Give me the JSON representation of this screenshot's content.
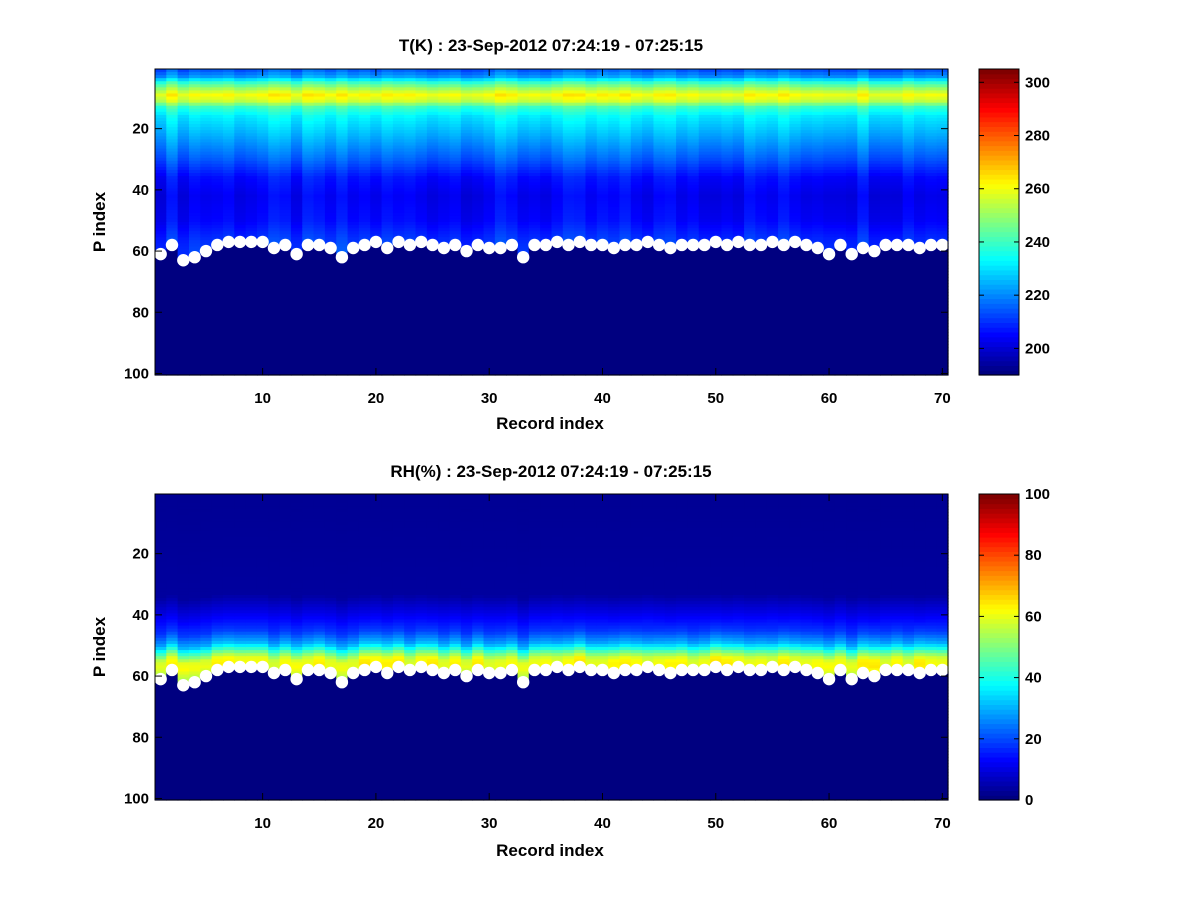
{
  "chart_data": [
    {
      "type": "heatmap",
      "title": "T(K) : 23-Sep-2012 07:24:19 - 07:25:15",
      "xlabel": "Record index",
      "ylabel": "P index",
      "xlim": [
        1,
        70
      ],
      "ylim": [
        100,
        1
      ],
      "x_ticks": [
        10,
        20,
        30,
        40,
        50,
        60,
        70
      ],
      "y_ticks": [
        20,
        40,
        60,
        80,
        100
      ],
      "colorbar": {
        "min": 190,
        "max": 305,
        "ticks": [
          200,
          220,
          240,
          260,
          280,
          300
        ],
        "colormap": "jet"
      },
      "profile_rows": [
        {
          "p": 1,
          "value": 215
        },
        {
          "p": 3,
          "value": 222
        },
        {
          "p": 5,
          "value": 240
        },
        {
          "p": 7,
          "value": 252
        },
        {
          "p": 9,
          "value": 262
        },
        {
          "p": 11,
          "value": 256
        },
        {
          "p": 13,
          "value": 240
        },
        {
          "p": 16,
          "value": 232
        },
        {
          "p": 22,
          "value": 225
        },
        {
          "p": 30,
          "value": 215
        },
        {
          "p": 36,
          "value": 206
        },
        {
          "p": 42,
          "value": 203
        },
        {
          "p": 50,
          "value": 205
        },
        {
          "p": 56,
          "value": 210
        },
        {
          "p": 60,
          "value": 212
        }
      ],
      "below_surface_value": 190,
      "marker_color": "#ffffff",
      "surface_p_index": [
        61,
        58,
        63,
        62,
        60,
        58,
        57,
        57,
        57,
        57,
        59,
        58,
        61,
        58,
        58,
        59,
        62,
        59,
        58,
        57,
        59,
        57,
        58,
        57,
        58,
        59,
        58,
        60,
        58,
        59,
        59,
        58,
        62,
        58,
        58,
        57,
        58,
        57,
        58,
        58,
        59,
        58,
        58,
        57,
        58,
        59,
        58,
        58,
        58,
        57,
        58,
        57,
        58,
        58,
        57,
        58,
        57,
        58,
        59,
        61,
        58,
        61,
        59,
        60,
        58,
        58,
        58,
        59,
        58,
        58
      ]
    },
    {
      "type": "heatmap",
      "title": "RH(%) : 23-Sep-2012 07:24:19 - 07:25:15",
      "xlabel": "Record index",
      "ylabel": "P index",
      "xlim": [
        1,
        70
      ],
      "ylim": [
        100,
        1
      ],
      "x_ticks": [
        10,
        20,
        30,
        40,
        50,
        60,
        70
      ],
      "y_ticks": [
        20,
        40,
        60,
        80,
        100
      ],
      "colorbar": {
        "min": 0,
        "max": 100,
        "ticks": [
          0,
          20,
          40,
          60,
          80,
          100
        ],
        "colormap": "jet"
      },
      "profile_rows": [
        {
          "p": 1,
          "value": 2
        },
        {
          "p": 34,
          "value": 3
        },
        {
          "p": 40,
          "value": 10
        },
        {
          "p": 46,
          "value": 18
        },
        {
          "p": 50,
          "value": 30
        },
        {
          "p": 53,
          "value": 48
        },
        {
          "p": 55,
          "value": 60
        },
        {
          "p": 57,
          "value": 62
        },
        {
          "p": 60,
          "value": 55
        }
      ],
      "below_surface_value": 0,
      "marker_color": "#ffffff",
      "surface_p_index": [
        61,
        58,
        63,
        62,
        60,
        58,
        57,
        57,
        57,
        57,
        59,
        58,
        61,
        58,
        58,
        59,
        62,
        59,
        58,
        57,
        59,
        57,
        58,
        57,
        58,
        59,
        58,
        60,
        58,
        59,
        59,
        58,
        62,
        58,
        58,
        57,
        58,
        57,
        58,
        58,
        59,
        58,
        58,
        57,
        58,
        59,
        58,
        58,
        58,
        57,
        58,
        57,
        58,
        58,
        57,
        58,
        57,
        58,
        59,
        61,
        58,
        61,
        59,
        60,
        58,
        58,
        58,
        59,
        58,
        58
      ]
    }
  ]
}
